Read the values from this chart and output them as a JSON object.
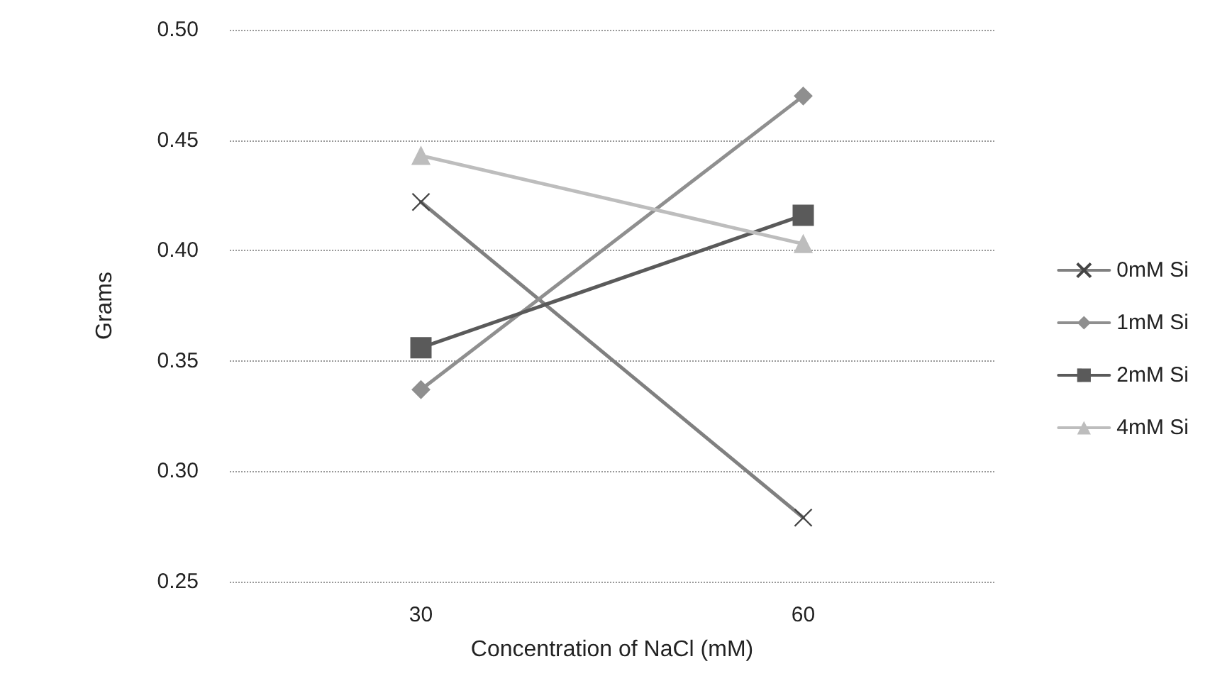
{
  "chart_data": {
    "type": "line",
    "xlabel": "Concentration of NaCl (mM)",
    "ylabel": "Grams",
    "categories": [
      "30",
      "60"
    ],
    "series": [
      {
        "name": "0mM Si",
        "color": "#808080",
        "marker": "cross",
        "values": [
          0.422,
          0.279
        ]
      },
      {
        "name": "1mM Si",
        "color": "#8f8f8f",
        "marker": "diamond",
        "values": [
          0.337,
          0.47
        ]
      },
      {
        "name": "2mM Si",
        "color": "#5a5a5a",
        "marker": "square",
        "values": [
          0.356,
          0.416
        ]
      },
      {
        "name": "4mM Si",
        "color": "#bdbdbd",
        "marker": "triangle",
        "values": [
          0.443,
          0.403
        ]
      }
    ],
    "ylim": [
      0.25,
      0.5
    ],
    "yticks": [
      0.25,
      {
        "value": 0.3,
        "label": "0.30"
      },
      0.35,
      {
        "value": 0.4,
        "label": "0.40"
      },
      0.45,
      {
        "value": 0.5,
        "label": "0.50"
      }
    ],
    "grid": "y",
    "legend": "right"
  }
}
